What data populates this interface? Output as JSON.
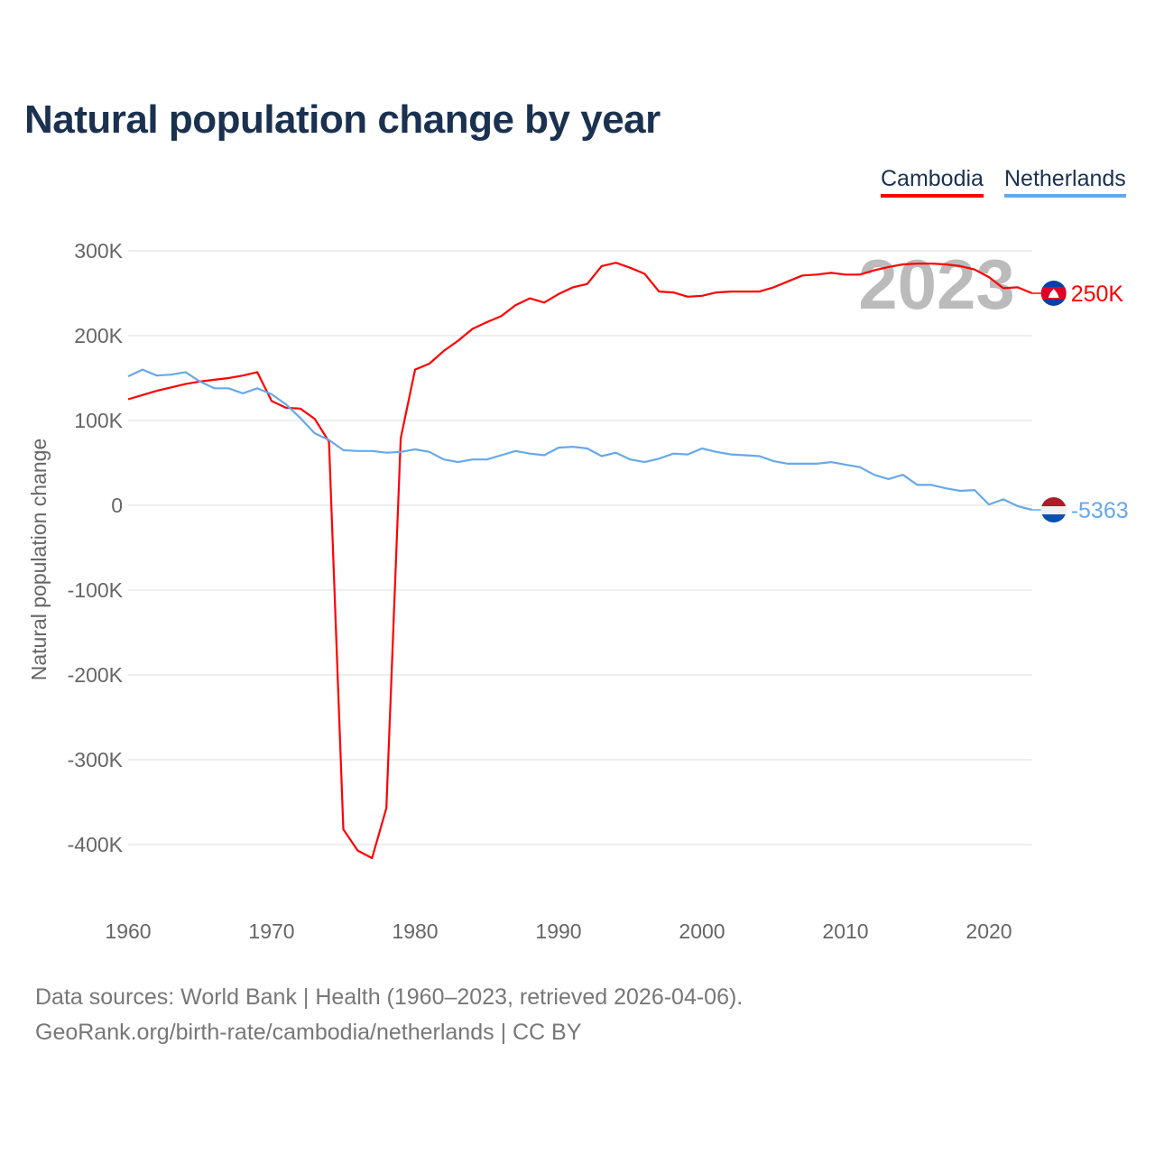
{
  "chart_data": {
    "type": "line",
    "title": "Natural population change by year",
    "xlabel": "",
    "ylabel": "Natural population change",
    "xlim": [
      1960,
      2023
    ],
    "ylim": [
      -450000,
      320000
    ],
    "x_ticks": [
      "1960",
      "1970",
      "1980",
      "1990",
      "2000",
      "2010",
      "2020"
    ],
    "y_ticks": [
      {
        "v": 300000,
        "label": "300K"
      },
      {
        "v": 200000,
        "label": "200K"
      },
      {
        "v": 100000,
        "label": "100K"
      },
      {
        "v": 0,
        "label": "0"
      },
      {
        "v": -100000,
        "label": "-100K"
      },
      {
        "v": -200000,
        "label": "-200K"
      },
      {
        "v": -300000,
        "label": "-300K"
      },
      {
        "v": -400000,
        "label": "-400K"
      }
    ],
    "grid": true,
    "legend_position": "top-right",
    "year_annotation": "2023",
    "x_start": 1960,
    "series": [
      {
        "name": "Cambodia",
        "color": "#ff0000",
        "end_label": "250K",
        "flag": "cambodia-flag",
        "values": [
          125,
          130,
          135,
          139,
          143,
          146,
          148,
          150,
          153,
          157,
          123,
          115,
          114,
          102,
          75,
          -382,
          -407,
          -416,
          -357,
          79,
          160,
          167,
          182,
          194,
          208,
          216,
          223,
          236,
          244,
          239,
          249,
          257,
          261,
          282,
          286,
          280,
          273,
          252,
          251,
          246,
          247,
          251,
          252,
          252,
          252,
          257,
          264,
          271,
          272,
          274,
          272,
          272,
          277,
          281,
          284,
          285,
          285,
          284,
          282,
          278,
          269,
          256,
          257,
          250
        ]
      },
      {
        "name": "Netherlands",
        "color": "#66a9ea",
        "end_label": "-5363",
        "flag": "netherlands-flag",
        "values": [
          152,
          160,
          153,
          154,
          157,
          146,
          138,
          138,
          132,
          138,
          131,
          119,
          103,
          85,
          77,
          65,
          64,
          64,
          62,
          63,
          66,
          63,
          54,
          51,
          54,
          54,
          59,
          64,
          61,
          59,
          68,
          69,
          67,
          58,
          62,
          54,
          51,
          55,
          61,
          60,
          67,
          63,
          60,
          59,
          58,
          52,
          49,
          49,
          49,
          51,
          48,
          45,
          36,
          31,
          36,
          24,
          24,
          20,
          17,
          18,
          1,
          7,
          -1,
          -5.363
        ]
      }
    ],
    "value_unit": "thousands"
  },
  "footer": {
    "line1": "Data sources: World Bank | Health (1960–2023, retrieved 2026-04-06).",
    "line2": "GeoRank.org/birth-rate/cambodia/netherlands | CC BY"
  }
}
